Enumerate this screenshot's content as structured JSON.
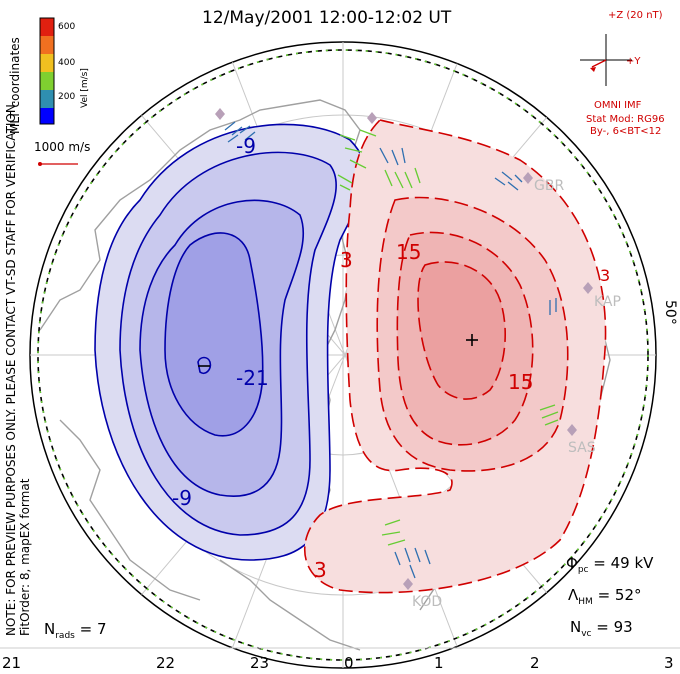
{
  "title": "12/May/2001  12:00-12:02  UT",
  "coordinates_label": "MLT coordinates",
  "note_line1": "NOTE: FOR PREVIEW PURPOSES ONLY. PLEASE CONTACT VT-SD STAFF FOR VERIFICATION.",
  "note_line2": "FitOrder: 8,  mapEX format",
  "velocity_scale": {
    "label": "Vel [m/s]",
    "ticks": [
      "200",
      "400",
      "600"
    ],
    "colors": [
      "#0000ff",
      "#2f8fb0",
      "#7fd030",
      "#f0c020",
      "#f07020",
      "#e02010"
    ]
  },
  "vector_reference": {
    "label": "1000 m/s",
    "color": "#d00000"
  },
  "imf": {
    "z_label": "+Z (20 nT)",
    "y_label": "+Y",
    "source": "OMNI IMF",
    "model": "Stat Mod: RG96",
    "condition": "By-, 6<BT<12",
    "color": "#d00000"
  },
  "contour_labels": {
    "neg": [
      "-9",
      "-21",
      "-9"
    ],
    "pos": [
      "3",
      "15",
      "15",
      "3",
      "3"
    ]
  },
  "radars": [
    "GBR",
    "KAP",
    "SAS",
    "KOD"
  ],
  "latitude_label": "50°",
  "stats": {
    "phi_pc": "49 kV",
    "lambda_hm": "52°",
    "n_vc": "93",
    "n_rads": "7"
  },
  "mlt_ticks": [
    "21",
    "22",
    "23",
    "0",
    "1",
    "2",
    "3"
  ],
  "extremes": {
    "min_marker": "−",
    "max_marker": "+"
  }
}
